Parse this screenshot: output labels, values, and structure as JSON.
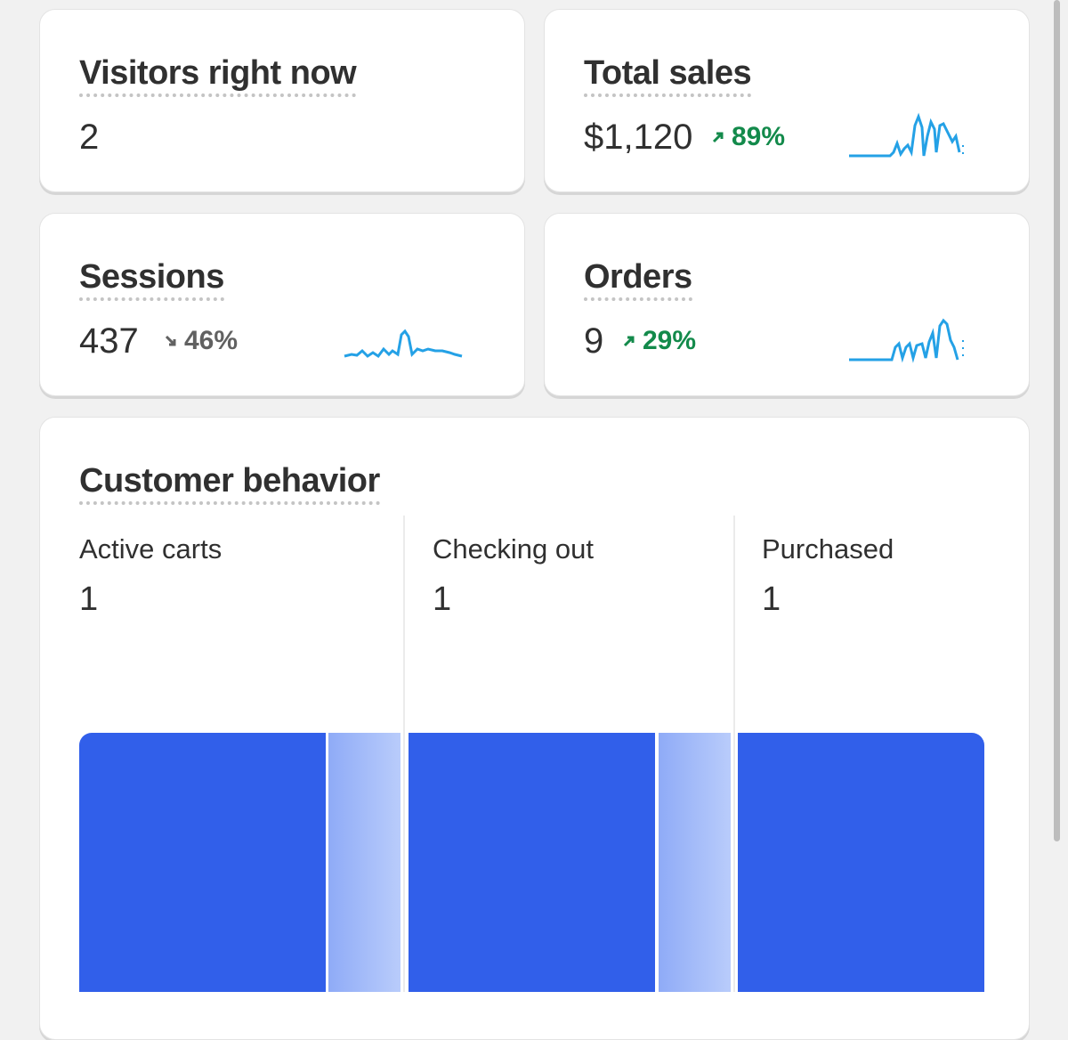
{
  "cards": [
    {
      "title": "Visitors right now",
      "value": 2
    },
    {
      "title": "Total sales",
      "value": "$1,120",
      "change": "89%"
    },
    {
      "title": "Sessions",
      "value": 437,
      "change": "46%"
    },
    {
      "title": "Orders",
      "value": 9,
      "change": "29%"
    }
  ],
  "customer_behavior": {
    "title": "Customer behavior",
    "stages": [
      {
        "label": "Active carts",
        "value": 1
      },
      {
        "label": "Checking out",
        "value": 1
      },
      {
        "label": "Purchased",
        "value": 1
      }
    ]
  }
}
